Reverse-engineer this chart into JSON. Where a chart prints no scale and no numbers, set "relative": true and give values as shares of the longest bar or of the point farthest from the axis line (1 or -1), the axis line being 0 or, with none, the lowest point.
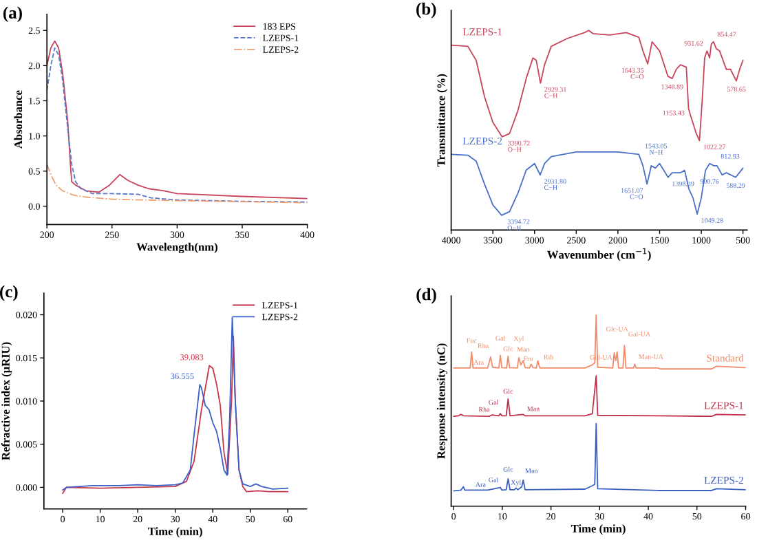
{
  "chart_data": [
    {
      "type": "line",
      "title": "(a)",
      "xlabel": "Wavelength(nm)",
      "ylabel": "Absorbance",
      "xlim": [
        200,
        400
      ],
      "xticks": [
        200,
        250,
        300,
        350,
        400
      ],
      "ylim": [
        -0.26,
        2.73
      ],
      "yticks": [
        {
          "value": 0,
          "label": "0.0"
        },
        0.5,
        {
          "value": 1,
          "label": "1.0"
        },
        1.5,
        {
          "value": 2,
          "label": "2.0"
        },
        2.5
      ],
      "legend": "top right",
      "grid": false,
      "series": [
        {
          "name": "183 EPS",
          "color": "#c8445a",
          "line_style": "solid",
          "x": [
            200,
            203,
            206,
            209,
            212,
            216,
            218,
            219,
            222,
            230,
            240,
            248,
            256,
            262,
            270,
            278,
            290,
            300,
            350,
            400
          ],
          "values": [
            2.0,
            2.25,
            2.35,
            2.25,
            1.9,
            1.2,
            0.6,
            0.35,
            0.3,
            0.22,
            0.2,
            0.3,
            0.45,
            0.37,
            0.3,
            0.25,
            0.22,
            0.18,
            0.14,
            0.11
          ]
        },
        {
          "name": "LZEPS-1",
          "color": "#5577cc",
          "line_style": "dashed",
          "x": [
            200,
            203,
            206,
            209,
            212,
            216,
            219,
            222,
            226,
            235,
            250,
            270,
            280,
            300,
            350,
            400
          ],
          "values": [
            1.65,
            2.0,
            2.25,
            2.15,
            1.8,
            1.1,
            0.6,
            0.35,
            0.25,
            0.18,
            0.18,
            0.17,
            0.12,
            0.09,
            0.07,
            0.06
          ]
        },
        {
          "name": "LZEPS-2",
          "color": "#f0a070",
          "line_style": "dotted",
          "x": [
            200,
            203,
            207,
            212,
            220,
            230,
            250,
            300,
            400
          ],
          "values": [
            0.6,
            0.45,
            0.3,
            0.22,
            0.16,
            0.13,
            0.1,
            0.08,
            0.05
          ]
        }
      ]
    },
    {
      "type": "line",
      "title": "(b)",
      "xlabel": "Wavenumber (cm$^{−1}$)",
      "ylabel": "Transmittance (%)",
      "relative": true,
      "tick_labels": "x",
      "xlim": [
        4000,
        450
      ],
      "xticks": [
        4000,
        3500,
        3000,
        2500,
        2000,
        1500,
        1000,
        500
      ],
      "legend": false,
      "grid": false,
      "series": [
        {
          "name": "LZEPS-1",
          "color": "#c8445a",
          "x": [
            4000,
            3800,
            3700,
            3600,
            3500,
            3390,
            3300,
            3200,
            3100,
            3020,
            2980,
            2929,
            2880,
            2800,
            2600,
            2400,
            2350,
            2300,
            2100,
            1900,
            1750,
            1700,
            1643,
            1590,
            1500,
            1400,
            1349,
            1300,
            1250,
            1180,
            1153,
            1130,
            1060,
            1022,
            990,
            960,
            931,
            900,
            880,
            854,
            820,
            780,
            740,
            700,
            650,
            580,
            540,
            500
          ],
          "values": [
            0.926,
            0.92,
            0.85,
            0.667,
            0.54,
            0.467,
            0.483,
            0.598,
            0.759,
            0.862,
            0.851,
            0.736,
            0.828,
            0.92,
            0.961,
            0.989,
            1.0,
            0.984,
            0.977,
            0.989,
            0.966,
            0.897,
            0.832,
            0.943,
            0.897,
            0.77,
            0.759,
            0.805,
            0.828,
            0.816,
            0.609,
            0.575,
            0.483,
            0.448,
            0.644,
            0.862,
            0.897,
            0.862,
            0.931,
            0.943,
            0.908,
            0.897,
            0.851,
            0.805,
            0.805,
            0.747,
            0.805,
            0.85
          ]
        },
        {
          "name": "LZEPS-2",
          "color": "#4a6fc8",
          "x": [
            4000,
            3800,
            3700,
            3600,
            3500,
            3395,
            3300,
            3200,
            3100,
            3000,
            2932,
            2880,
            2800,
            2500,
            2000,
            1750,
            1700,
            1651,
            1600,
            1550,
            1500,
            1398,
            1350,
            1250,
            1200,
            1150,
            1100,
            1049,
            1000,
            950,
            900,
            850,
            812,
            750,
            700,
            588,
            500
          ],
          "values": [
            0.379,
            0.375,
            0.345,
            0.23,
            0.126,
            0.074,
            0.092,
            0.184,
            0.3,
            0.333,
            0.276,
            0.333,
            0.368,
            0.391,
            0.391,
            0.379,
            0.322,
            0.23,
            0.322,
            0.31,
            0.333,
            0.264,
            0.287,
            0.287,
            0.299,
            0.207,
            0.161,
            0.08,
            0.161,
            0.299,
            0.333,
            0.322,
            0.322,
            0.276,
            0.287,
            0.264,
            0.31
          ]
        }
      ],
      "annotations": [
        {
          "text": "3390.72\nO−H",
          "x": 3390.72,
          "y": 0.467
        },
        {
          "text": "2929.31\nC−H",
          "x": 2929.31,
          "y": 0.736
        },
        {
          "text": "1643.35\nC=O",
          "x": 1643.35,
          "y": 0.832
        },
        {
          "text": "1348.89",
          "x": 1348.89,
          "y": 0.759
        },
        {
          "text": "1153.43",
          "x": 1153.43,
          "y": 0.609
        },
        {
          "text": "1022.27",
          "x": 1022.27,
          "y": 0.448
        },
        {
          "text": "931.62",
          "x": 931.62,
          "y": 0.897
        },
        {
          "text": "854.47",
          "x": 854.47,
          "y": 0.943
        },
        {
          "text": "578.65",
          "x": 578.65,
          "y": 0.747
        },
        {
          "text": "3394.72\nO−H",
          "x": 3394.72,
          "y": 0.074
        },
        {
          "text": "2931.80\nC−H",
          "x": 2931.8,
          "y": 0.276
        },
        {
          "text": "1651.07\nC=O",
          "x": 1651.07,
          "y": 0.23
        },
        {
          "text": "1398.39",
          "x": 1398.39,
          "y": 0.264
        },
        {
          "text": "1543.05\nN−H",
          "x": 1543.05,
          "y": 0.333
        },
        {
          "text": "1049.28",
          "x": 1049.28,
          "y": 0.08
        },
        {
          "text": "900.76",
          "x": 900.76,
          "y": 0.333
        },
        {
          "text": "812.93",
          "x": 812.93,
          "y": 0.322
        },
        {
          "text": "588.29",
          "x": 588.29,
          "y": 0.264
        }
      ]
    },
    {
      "type": "line",
      "title": "(c)",
      "xlabel": "Time (min)",
      "ylabel": "Refractive index (μRIU)",
      "xlim": [
        -5,
        65
      ],
      "xticks": [
        0,
        10,
        20,
        30,
        40,
        50,
        60
      ],
      "ylim": [
        -0.0025,
        0.0225
      ],
      "yticks": [
        {
          "value": 0,
          "label": "0.000"
        },
        {
          "value": 0.005,
          "label": "0.005"
        },
        {
          "value": 0.01,
          "label": "0.010"
        },
        {
          "value": 0.015,
          "label": "0.015"
        },
        {
          "value": 0.02,
          "label": "0.020"
        }
      ],
      "legend": "top right",
      "grid": false,
      "series": [
        {
          "name": "LZEPS-1",
          "color": "#c8344a",
          "x": [
            0,
            1,
            10,
            20,
            30,
            33,
            35,
            37,
            39.083,
            40,
            41,
            42,
            43,
            44,
            45,
            45.5,
            46,
            47,
            48,
            49,
            52,
            55,
            60
          ],
          "values": [
            -0.0007,
            0,
            -0.0001,
            0,
            0.0001,
            0.0007,
            0.003,
            0.009,
            0.0141,
            0.0138,
            0.012,
            0.0095,
            0.004,
            0.0015,
            0.01,
            0.0175,
            0.01,
            0.002,
            0.0001,
            -0.0005,
            -0.0004,
            -0.0005,
            -0.0005
          ]
        },
        {
          "name": "LZEPS-2",
          "color": "#3a5fc8",
          "x": [
            0,
            1,
            8,
            15,
            20,
            25,
            30,
            32,
            34,
            35,
            36.555,
            37,
            38,
            39,
            40,
            41,
            42,
            43,
            43.8,
            44.5,
            45.2,
            46,
            47,
            48,
            50,
            51.5,
            53,
            56,
            60
          ],
          "values": [
            -0.0003,
            0,
            0.0002,
            0.0002,
            0.0003,
            0.0002,
            0.0003,
            0.0005,
            0.002,
            0.006,
            0.0119,
            0.0115,
            0.0095,
            0.009,
            0.0075,
            0.0065,
            0.0045,
            0.002,
            0.0014,
            0.008,
            0.0197,
            0.01,
            0.002,
            0.0004,
            0.0001,
            0.0004,
            0.0001,
            -0.0002,
            -0.0001
          ]
        }
      ],
      "annotations": [
        {
          "text": "39.083",
          "x": 39.083,
          "y": 0.0141
        },
        {
          "text": "36.555",
          "x": 36.555,
          "y": 0.0119
        }
      ]
    },
    {
      "type": "line",
      "title": "(d)",
      "xlabel": "Time (min)",
      "ylabel": "Response intensity (nC)",
      "relative": true,
      "tick_labels": "x",
      "xlim": [
        -0.5,
        60
      ],
      "xticks": [
        0,
        10,
        20,
        30,
        40,
        50,
        60
      ],
      "legend": false,
      "grid": false,
      "series": [
        {
          "name": "Standard",
          "color": "#f08c6a",
          "x": [
            0,
            3.4,
            3.7,
            4.0,
            7.0,
            7.6,
            8.0,
            9.3,
            9.6,
            9.9,
            10.9,
            11.2,
            11.5,
            13.1,
            13.4,
            13.8,
            14.3,
            14.7,
            15.6,
            15.9,
            16.3,
            17.0,
            17.3,
            17.7,
            27,
            28.5,
            29.0,
            29.3,
            29.6,
            32.7,
            33.0,
            33.3,
            33.6,
            33.9,
            34.8,
            35.1,
            35.4,
            37.0,
            37.2,
            37.5,
            42,
            42.5,
            53,
            54,
            60
          ],
          "values": [
            0.723,
            0.723,
            0.807,
            0.723,
            0.723,
            0.78,
            0.727,
            0.723,
            0.789,
            0.725,
            0.723,
            0.784,
            0.725,
            0.723,
            0.777,
            0.739,
            0.761,
            0.725,
            0.723,
            0.743,
            0.725,
            0.723,
            0.761,
            0.723,
            0.723,
            0.739,
            0.75,
            1.0,
            0.727,
            0.723,
            0.802,
            0.761,
            0.807,
            0.723,
            0.723,
            0.841,
            0.723,
            0.723,
            0.743,
            0.723,
            0.723,
            0.718,
            0.718,
            0.732,
            0.725
          ]
        },
        {
          "name": "LZEPS-1",
          "color": "#c0304a",
          "x": [
            0,
            1,
            1.5,
            2,
            7.3,
            7.8,
            9.3,
            9.6,
            9.9,
            10.8,
            11.2,
            11.6,
            14.3,
            14.7,
            27,
            28.5,
            29.3,
            29.6,
            42,
            53,
            54,
            60
          ],
          "values": [
            0.47,
            0.473,
            0.48,
            0.473,
            0.47,
            0.477,
            0.473,
            0.484,
            0.473,
            0.473,
            0.561,
            0.473,
            0.48,
            0.473,
            0.473,
            0.484,
            0.682,
            0.475,
            0.473,
            0.47,
            0.48,
            0.477
          ]
        },
        {
          "name": "LZEPS-2",
          "color": "#3a5fc0",
          "x": [
            0,
            1.5,
            2.0,
            2.3,
            7,
            9.6,
            9.9,
            10.8,
            11.2,
            11.6,
            12.5,
            12.8,
            13.2,
            14.0,
            14.3,
            14.7,
            27,
            28.5,
            29.0,
            29.3,
            29.6,
            42,
            53,
            54,
            60
          ],
          "values": [
            0.08,
            0.084,
            0.102,
            0.084,
            0.084,
            0.098,
            0.084,
            0.086,
            0.143,
            0.086,
            0.086,
            0.095,
            0.086,
            0.102,
            0.136,
            0.086,
            0.089,
            0.107,
            0.114,
            0.432,
            0.091,
            0.082,
            0.082,
            0.091,
            0.086
          ]
        }
      ],
      "annotations": [
        {
          "text": "Fuc",
          "x": 3.7,
          "y": 0.807
        },
        {
          "text": "Ara",
          "x": 7.0,
          "y": 0.723
        },
        {
          "text": "Rha",
          "x": 7.6,
          "y": 0.78
        },
        {
          "text": "Gal",
          "x": 9.6,
          "y": 0.789
        },
        {
          "text": "Glc",
          "x": 11.2,
          "y": 0.784
        },
        {
          "text": "Xyl",
          "x": 13.4,
          "y": 0.777
        },
        {
          "text": "Man",
          "x": 14.3,
          "y": 0.761
        },
        {
          "text": "Fru",
          "x": 15.9,
          "y": 0.743
        },
        {
          "text": "Rib",
          "x": 17.3,
          "y": 0.761
        },
        {
          "text": "Gul-UA",
          "x": 33.0,
          "y": 0.802
        },
        {
          "text": "Glc-UA",
          "x": 33.6,
          "y": 0.807
        },
        {
          "text": "Gal-UA",
          "x": 35.1,
          "y": 0.841
        },
        {
          "text": "Man-UA",
          "x": 37.2,
          "y": 0.743
        },
        {
          "text": "Rha",
          "x": 7.8,
          "y": 0.477
        },
        {
          "text": "Gal",
          "x": 9.6,
          "y": 0.484
        },
        {
          "text": "Glc",
          "x": 11.2,
          "y": 0.561
        },
        {
          "text": "Man",
          "x": 14.3,
          "y": 0.48
        },
        {
          "text": "Ara",
          "x": 7.0,
          "y": 0.084
        },
        {
          "text": "Gal",
          "x": 9.6,
          "y": 0.098
        },
        {
          "text": "Glc",
          "x": 11.2,
          "y": 0.143
        },
        {
          "text": "Xyl",
          "x": 12.8,
          "y": 0.095
        },
        {
          "text": "Man",
          "x": 14.3,
          "y": 0.136
        }
      ]
    }
  ]
}
